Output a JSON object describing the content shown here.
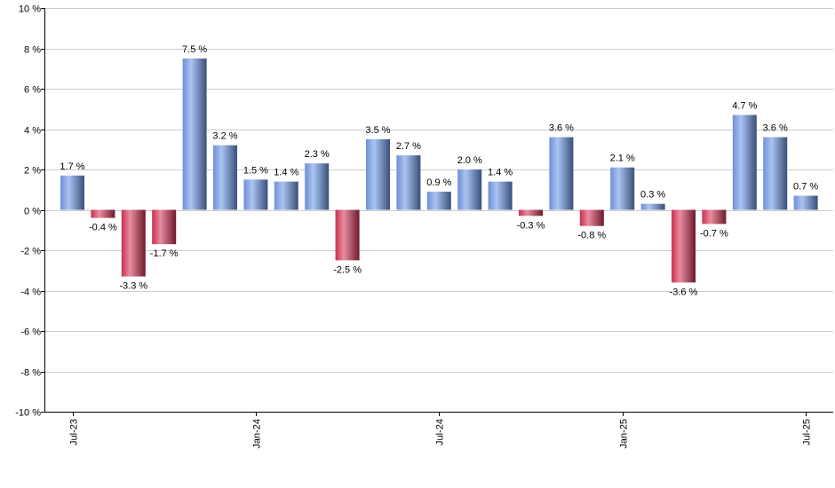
{
  "chart_data": {
    "type": "bar",
    "title": "",
    "xlabel": "",
    "ylabel": "",
    "ylim": [
      -10,
      10
    ],
    "y_ticks": [
      -10,
      -8,
      -6,
      -4,
      -2,
      0,
      2,
      4,
      6,
      8,
      10
    ],
    "y_tick_labels": [
      "-10 %",
      "-8 %",
      "-6 %",
      "-4 %",
      "-2 %",
      "0 %",
      "2 %",
      "4 %",
      "6 %",
      "8 %",
      "10 %"
    ],
    "grid": true,
    "categories": [
      "2023-07",
      "2023-08",
      "2023-09",
      "2023-10",
      "2023-11",
      "2023-12",
      "2024-01",
      "2024-02",
      "2024-03",
      "2024-04",
      "2024-05",
      "2024-06",
      "2024-07",
      "2024-08",
      "2024-09",
      "2024-10",
      "2024-11",
      "2024-12",
      "2025-01",
      "2025-02",
      "2025-03",
      "2025-04",
      "2025-05",
      "2025-06",
      "2025-07"
    ],
    "values": [
      1.7,
      -0.4,
      -3.3,
      -1.7,
      7.5,
      3.2,
      1.5,
      1.4,
      2.3,
      -2.5,
      3.5,
      2.7,
      0.9,
      2.0,
      1.4,
      -0.3,
      3.6,
      -0.8,
      2.1,
      0.3,
      -3.6,
      -0.7,
      4.7,
      3.6,
      0.7
    ],
    "value_labels": [
      "1.7 %",
      "-0.4 %",
      "-3.3 %",
      "-1.7 %",
      "7.5 %",
      "3.2 %",
      "1.5 %",
      "1.4 %",
      "2.3 %",
      "-2.5 %",
      "3.5 %",
      "2.7 %",
      "0.9 %",
      "2.0 %",
      "1.4 %",
      "-0.3 %",
      "3.6 %",
      "-0.8 %",
      "2.1 %",
      "0.3 %",
      "-3.6 %",
      "-0.7 %",
      "4.7 %",
      "3.6 %",
      "0.7 %"
    ],
    "x_tick_labels": [
      {
        "category": "2023-07",
        "label": "Jul-23"
      },
      {
        "category": "2024-01",
        "label": "Jan-24"
      },
      {
        "category": "2024-07",
        "label": "Jul-24"
      },
      {
        "category": "2025-01",
        "label": "Jan-25"
      },
      {
        "category": "2025-07",
        "label": "Jul-25"
      }
    ],
    "colors": {
      "positive_light": "#aac4f2",
      "positive_mid": "#7799dd",
      "positive_dark": "#3a4f7a",
      "negative_light": "#e88ca0",
      "negative_mid": "#c8304f",
      "negative_dark": "#6e1a2c",
      "grid": "#cccccc",
      "axis": "#000000"
    }
  }
}
